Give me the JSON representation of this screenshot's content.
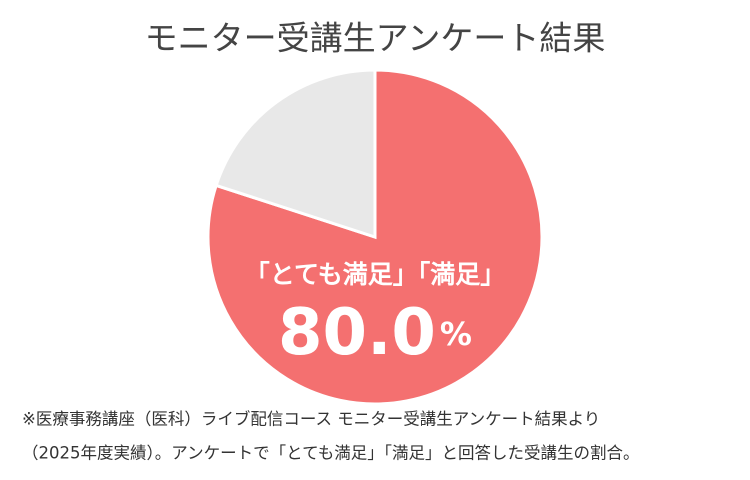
{
  "chart_data": {
    "type": "pie",
    "title": "モニター受講生アンケート結果",
    "categories": [
      "「とても満足」「満足」",
      null
    ],
    "values": [
      80.0,
      20.0
    ],
    "value_labels": [
      "80.0%",
      null
    ],
    "colors": [
      "#f47070",
      "#e8e8e8"
    ],
    "notes": [
      "※医療事務講座（医科）ライブ配信コース モニター受講生アンケート結果より",
      "（2025年度実績）。アンケートで「とても満足」「満足」と回答した受講生の割合。"
    ]
  }
}
